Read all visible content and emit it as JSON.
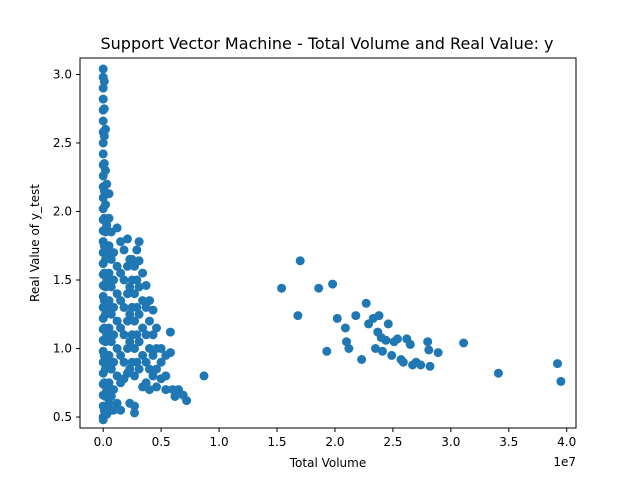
{
  "chart_data": {
    "type": "scatter",
    "title": "Support Vector Machine - Total Volume and Real Value: y",
    "xlabel": "Total Volume",
    "ylabel": "Real Value of y_test",
    "x_offset_label": "1e7",
    "xlim": [
      -2000000,
      40800000
    ],
    "ylim": [
      0.42,
      3.12
    ],
    "x_ticks": [
      0,
      5000000,
      10000000,
      15000000,
      20000000,
      25000000,
      30000000,
      35000000,
      40000000
    ],
    "x_tick_labels": [
      "0.0",
      "0.5",
      "1.0",
      "1.5",
      "2.0",
      "2.5",
      "3.0",
      "3.5",
      "4.0"
    ],
    "y_ticks": [
      0.5,
      1.0,
      1.5,
      2.0,
      2.5,
      3.0
    ],
    "y_tick_labels": [
      "0.5",
      "1.0",
      "1.5",
      "2.0",
      "2.5",
      "3.0"
    ],
    "grid": false,
    "marker_color": "#1f77b4",
    "series": [
      {
        "points": [
          [
            0,
            3.04
          ],
          [
            0,
            2.98
          ],
          [
            0,
            2.9
          ],
          [
            0,
            2.82
          ],
          [
            0,
            2.74
          ],
          [
            0,
            2.66
          ],
          [
            0,
            2.58
          ],
          [
            0,
            2.5
          ],
          [
            0,
            2.42
          ],
          [
            0,
            2.34
          ],
          [
            0,
            2.26
          ],
          [
            0,
            2.18
          ],
          [
            0,
            2.1
          ],
          [
            0,
            2.02
          ],
          [
            0,
            1.94
          ],
          [
            0,
            1.86
          ],
          [
            0,
            1.78
          ],
          [
            0,
            1.7
          ],
          [
            0,
            1.62
          ],
          [
            0,
            1.54
          ],
          [
            0,
            1.46
          ],
          [
            0,
            1.38
          ],
          [
            0,
            1.3
          ],
          [
            0,
            1.22
          ],
          [
            0,
            1.14
          ],
          [
            0,
            1.06
          ],
          [
            0,
            0.98
          ],
          [
            0,
            0.9
          ],
          [
            0,
            0.82
          ],
          [
            0,
            0.74
          ],
          [
            0,
            0.66
          ],
          [
            0,
            0.58
          ],
          [
            0,
            0.5
          ],
          [
            0,
            0.48
          ],
          [
            100000,
            2.95
          ],
          [
            100000,
            2.75
          ],
          [
            100000,
            2.55
          ],
          [
            100000,
            2.35
          ],
          [
            100000,
            2.15
          ],
          [
            100000,
            1.95
          ],
          [
            100000,
            1.75
          ],
          [
            100000,
            1.55
          ],
          [
            100000,
            1.35
          ],
          [
            100000,
            1.15
          ],
          [
            100000,
            0.95
          ],
          [
            100000,
            0.75
          ],
          [
            100000,
            0.55
          ],
          [
            200000,
            2.6
          ],
          [
            200000,
            2.3
          ],
          [
            200000,
            2.05
          ],
          [
            200000,
            1.85
          ],
          [
            200000,
            1.65
          ],
          [
            200000,
            1.45
          ],
          [
            200000,
            1.25
          ],
          [
            200000,
            1.05
          ],
          [
            200000,
            0.85
          ],
          [
            200000,
            0.65
          ],
          [
            300000,
            2.2
          ],
          [
            300000,
            1.9
          ],
          [
            300000,
            1.7
          ],
          [
            300000,
            1.5
          ],
          [
            300000,
            1.3
          ],
          [
            300000,
            1.1
          ],
          [
            300000,
            0.9
          ],
          [
            300000,
            0.7
          ],
          [
            300000,
            0.52
          ],
          [
            500000,
            2.13
          ],
          [
            500000,
            1.95
          ],
          [
            500000,
            1.75
          ],
          [
            500000,
            1.55
          ],
          [
            500000,
            1.35
          ],
          [
            500000,
            1.15
          ],
          [
            500000,
            0.95
          ],
          [
            500000,
            0.75
          ],
          [
            500000,
            0.6
          ],
          [
            700000,
            1.85
          ],
          [
            700000,
            1.65
          ],
          [
            700000,
            1.45
          ],
          [
            700000,
            1.25
          ],
          [
            700000,
            1.05
          ],
          [
            700000,
            0.85
          ],
          [
            700000,
            0.65
          ],
          [
            700000,
            0.55
          ],
          [
            900000,
            1.7
          ],
          [
            900000,
            1.5
          ],
          [
            900000,
            1.3
          ],
          [
            900000,
            1.1
          ],
          [
            900000,
            0.9
          ],
          [
            900000,
            0.7
          ],
          [
            900000,
            0.55
          ],
          [
            1200000,
            1.88
          ],
          [
            1200000,
            1.6
          ],
          [
            1200000,
            1.4
          ],
          [
            1200000,
            1.2
          ],
          [
            1200000,
            1.0
          ],
          [
            1200000,
            0.8
          ],
          [
            1200000,
            0.6
          ],
          [
            1500000,
            1.78
          ],
          [
            1500000,
            1.55
          ],
          [
            1500000,
            1.35
          ],
          [
            1500000,
            1.15
          ],
          [
            1500000,
            0.95
          ],
          [
            1500000,
            0.75
          ],
          [
            1500000,
            0.55
          ],
          [
            1800000,
            1.72
          ],
          [
            1800000,
            1.5
          ],
          [
            1800000,
            1.3
          ],
          [
            1800000,
            1.1
          ],
          [
            1800000,
            0.9
          ],
          [
            1800000,
            0.78
          ],
          [
            2100000,
            1.8
          ],
          [
            2100000,
            1.6
          ],
          [
            2100000,
            1.4
          ],
          [
            2100000,
            1.2
          ],
          [
            2100000,
            1.0
          ],
          [
            2100000,
            0.82
          ],
          [
            2300000,
            1.65
          ],
          [
            2300000,
            1.45
          ],
          [
            2300000,
            1.25
          ],
          [
            2300000,
            1.05
          ],
          [
            2300000,
            0.85
          ],
          [
            2300000,
            0.6
          ],
          [
            2500000,
            1.65
          ],
          [
            2500000,
            1.5
          ],
          [
            2500000,
            1.3
          ],
          [
            2500000,
            1.1
          ],
          [
            2500000,
            0.9
          ],
          [
            2700000,
            1.6
          ],
          [
            2700000,
            1.4
          ],
          [
            2700000,
            1.2
          ],
          [
            2700000,
            1.0
          ],
          [
            2700000,
            0.8
          ],
          [
            2700000,
            0.58
          ],
          [
            2700000,
            0.53
          ],
          [
            2900000,
            1.72
          ],
          [
            2900000,
            1.5
          ],
          [
            2900000,
            1.3
          ],
          [
            2900000,
            1.1
          ],
          [
            2900000,
            0.9
          ],
          [
            3100000,
            1.78
          ],
          [
            3100000,
            1.64
          ],
          [
            3100000,
            1.45
          ],
          [
            3100000,
            1.25
          ],
          [
            3100000,
            1.05
          ],
          [
            3100000,
            0.85
          ],
          [
            3400000,
            1.55
          ],
          [
            3400000,
            1.35
          ],
          [
            3400000,
            1.15
          ],
          [
            3400000,
            0.95
          ],
          [
            3400000,
            0.72
          ],
          [
            3700000,
            1.46
          ],
          [
            3700000,
            1.3
          ],
          [
            3700000,
            1.1
          ],
          [
            3700000,
            0.9
          ],
          [
            3700000,
            0.75
          ],
          [
            4000000,
            1.35
          ],
          [
            4000000,
            1.2
          ],
          [
            4000000,
            1.0
          ],
          [
            4000000,
            0.85
          ],
          [
            4000000,
            0.7
          ],
          [
            4300000,
            1.28
          ],
          [
            4300000,
            1.1
          ],
          [
            4300000,
            0.95
          ],
          [
            4300000,
            0.8
          ],
          [
            4600000,
            1.15
          ],
          [
            4600000,
            1.0
          ],
          [
            4600000,
            0.85
          ],
          [
            4600000,
            0.72
          ],
          [
            5000000,
            1.0
          ],
          [
            5000000,
            0.9
          ],
          [
            5000000,
            0.78
          ],
          [
            5400000,
            0.95
          ],
          [
            5400000,
            0.8
          ],
          [
            5400000,
            0.7
          ],
          [
            5800000,
            1.12
          ],
          [
            5800000,
            0.97
          ],
          [
            6000000,
            0.7
          ],
          [
            6200000,
            0.65
          ],
          [
            6500000,
            0.7
          ],
          [
            6900000,
            0.66
          ],
          [
            7200000,
            0.62
          ],
          [
            8700000,
            0.8
          ],
          [
            15400000,
            1.44
          ],
          [
            16800000,
            1.24
          ],
          [
            17000000,
            1.64
          ],
          [
            18600000,
            1.44
          ],
          [
            19300000,
            0.98
          ],
          [
            19800000,
            1.47
          ],
          [
            20200000,
            1.22
          ],
          [
            20900000,
            1.15
          ],
          [
            21000000,
            1.05
          ],
          [
            21200000,
            1.0
          ],
          [
            21800000,
            1.24
          ],
          [
            22300000,
            0.92
          ],
          [
            22700000,
            1.33
          ],
          [
            22900000,
            1.18
          ],
          [
            23300000,
            1.22
          ],
          [
            23500000,
            1.0
          ],
          [
            23700000,
            1.12
          ],
          [
            23800000,
            1.24
          ],
          [
            24000000,
            1.08
          ],
          [
            24100000,
            0.98
          ],
          [
            24400000,
            1.06
          ],
          [
            24600000,
            1.18
          ],
          [
            24900000,
            0.95
          ],
          [
            25100000,
            1.05
          ],
          [
            25400000,
            1.07
          ],
          [
            25700000,
            0.92
          ],
          [
            25900000,
            0.9
          ],
          [
            26200000,
            1.07
          ],
          [
            26500000,
            1.03
          ],
          [
            26700000,
            0.88
          ],
          [
            27000000,
            0.9
          ],
          [
            27400000,
            0.88
          ],
          [
            28000000,
            1.05
          ],
          [
            28100000,
            0.99
          ],
          [
            28200000,
            0.87
          ],
          [
            28900000,
            0.97
          ],
          [
            31100000,
            1.04
          ],
          [
            34100000,
            0.82
          ],
          [
            39200000,
            0.89
          ],
          [
            39500000,
            0.76
          ]
        ]
      }
    ]
  }
}
